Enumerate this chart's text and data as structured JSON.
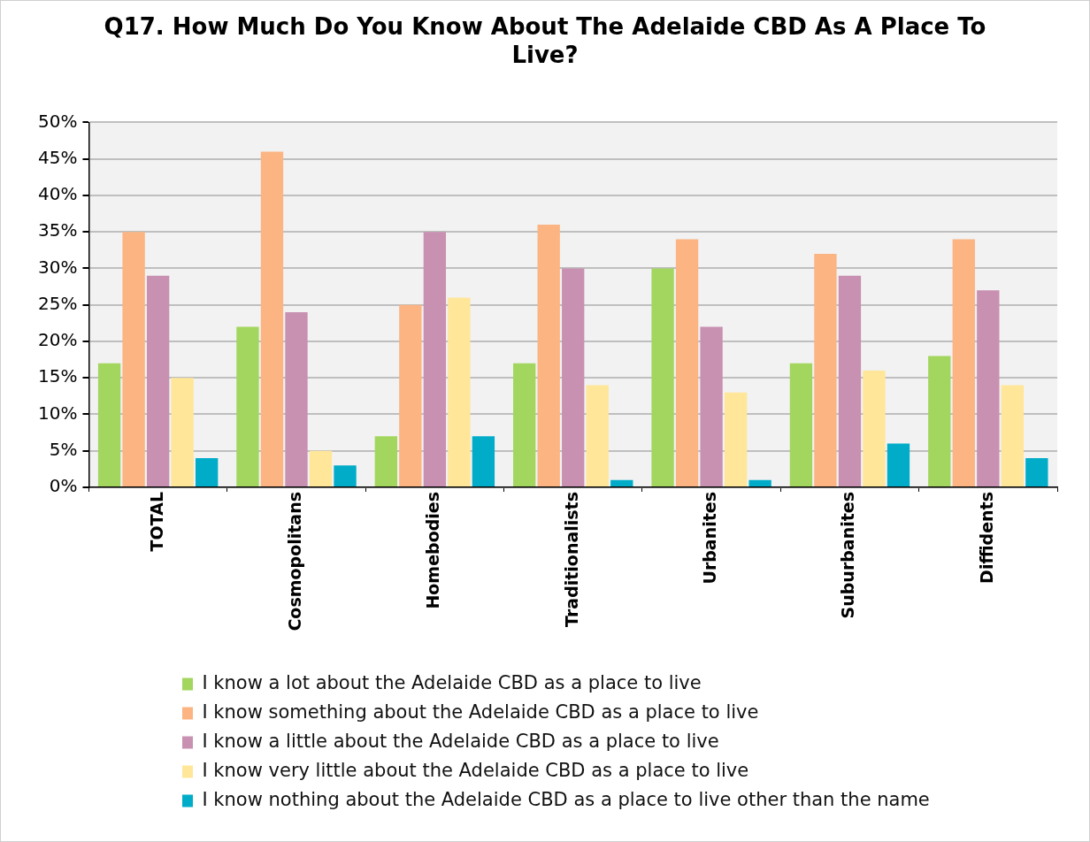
{
  "chart_data": {
    "type": "bar",
    "title": "Q17. How Much Do You Know About The Adelaide CBD As A Place To Live?",
    "categories": [
      "TOTAL",
      "Cosmopolitans",
      "Homebodies",
      "Traditionalists",
      "Urbanites",
      "Suburbanites",
      "Diffidents"
    ],
    "series": [
      {
        "name": "I know a lot about the Adelaide CBD as a place to live",
        "color": "#a2d65e",
        "values": [
          17,
          22,
          7,
          17,
          30,
          17,
          18
        ]
      },
      {
        "name": "I know something about the Adelaide CBD as a place to live",
        "color": "#fbb482",
        "values": [
          35,
          46,
          25,
          36,
          34,
          32,
          34
        ]
      },
      {
        "name": "I know a little about the Adelaide CBD as a place to live",
        "color": "#c890b1",
        "values": [
          29,
          24,
          35,
          30,
          22,
          29,
          27
        ]
      },
      {
        "name": "I know very little about the Adelaide CBD as a place to live",
        "color": "#ffe699",
        "values": [
          15,
          5,
          26,
          14,
          13,
          16,
          14
        ]
      },
      {
        "name": "I know nothing about the Adelaide CBD as a place to live other than the name",
        "color": "#00acc8",
        "values": [
          4,
          3,
          7,
          1,
          1,
          6,
          4
        ]
      }
    ],
    "ylim": [
      0,
      50
    ],
    "yticks": [
      {
        "value": 0,
        "label": "0%"
      },
      {
        "value": 5,
        "label": "5%"
      },
      {
        "value": 10,
        "label": "10%"
      },
      {
        "value": 15,
        "label": "15%"
      },
      {
        "value": 20,
        "label": "20%"
      },
      {
        "value": 25,
        "label": "25%"
      },
      {
        "value": 30,
        "label": "30%"
      },
      {
        "value": 35,
        "label": "35%"
      },
      {
        "value": 40,
        "label": "40%"
      },
      {
        "value": 45,
        "label": "45%"
      },
      {
        "value": 50,
        "label": "50%"
      }
    ],
    "grid": "y",
    "legend": "bottom"
  }
}
